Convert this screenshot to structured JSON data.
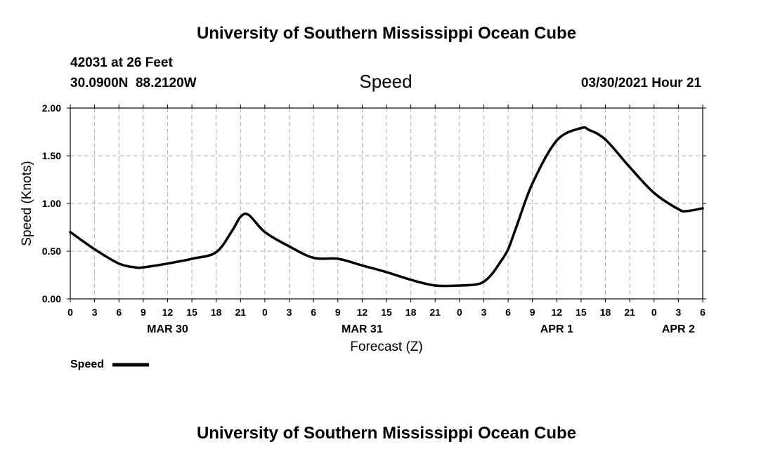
{
  "header": {
    "title": "University of Southern Mississippi Ocean Cube",
    "station": "42031 at 26 Feet",
    "coords": "30.0900N  88.2120W",
    "timestamp": "03/30/2021 Hour 21"
  },
  "footer": {
    "title": "University of Southern Mississippi Ocean Cube"
  },
  "colors": {
    "line": "#000000",
    "grid": "#b0b0b0",
    "background": "#ffffff"
  },
  "chart_data": {
    "type": "line",
    "title": "Speed",
    "xlabel": "Forecast (Z)",
    "ylabel": "Speed (Knots)",
    "ylim": [
      0,
      2
    ],
    "xlim": [
      0,
      78
    ],
    "x_unit": "hours since MAR 30 00Z",
    "yticks": [
      0,
      0.5,
      1,
      1.5,
      2
    ],
    "ytick_labels": [
      "0.00",
      "0.50",
      "1.00",
      "1.50",
      "2.00"
    ],
    "xtick_labels": [
      "0",
      "3",
      "6",
      "9",
      "12",
      "15",
      "18",
      "21",
      "0",
      "3",
      "6",
      "9",
      "12",
      "15",
      "18",
      "21",
      "0",
      "3",
      "6",
      "9",
      "12",
      "15",
      "18",
      "21",
      "0",
      "3",
      "6"
    ],
    "date_labels": [
      {
        "label": "MAR 30",
        "hour": 12
      },
      {
        "label": "MAR 31",
        "hour": 36
      },
      {
        "label": "APR 1",
        "hour": 60
      },
      {
        "label": "APR 2",
        "hour": 75
      }
    ],
    "grid": true,
    "legend": "bottom-left",
    "series": [
      {
        "name": "Speed",
        "x": [
          0,
          3,
          6,
          8,
          9,
          12,
          15,
          18,
          20,
          21,
          22,
          24,
          27,
          30,
          33,
          36,
          39,
          42,
          45,
          48,
          50,
          51,
          52,
          53,
          54,
          55,
          57,
          60,
          63,
          64,
          66,
          69,
          72,
          75,
          76,
          78
        ],
        "values": [
          0.7,
          0.52,
          0.37,
          0.33,
          0.33,
          0.37,
          0.42,
          0.49,
          0.72,
          0.86,
          0.88,
          0.7,
          0.55,
          0.43,
          0.42,
          0.35,
          0.28,
          0.2,
          0.14,
          0.14,
          0.15,
          0.18,
          0.26,
          0.38,
          0.52,
          0.75,
          1.21,
          1.66,
          1.79,
          1.77,
          1.67,
          1.38,
          1.11,
          0.94,
          0.92,
          0.95
        ]
      }
    ]
  }
}
